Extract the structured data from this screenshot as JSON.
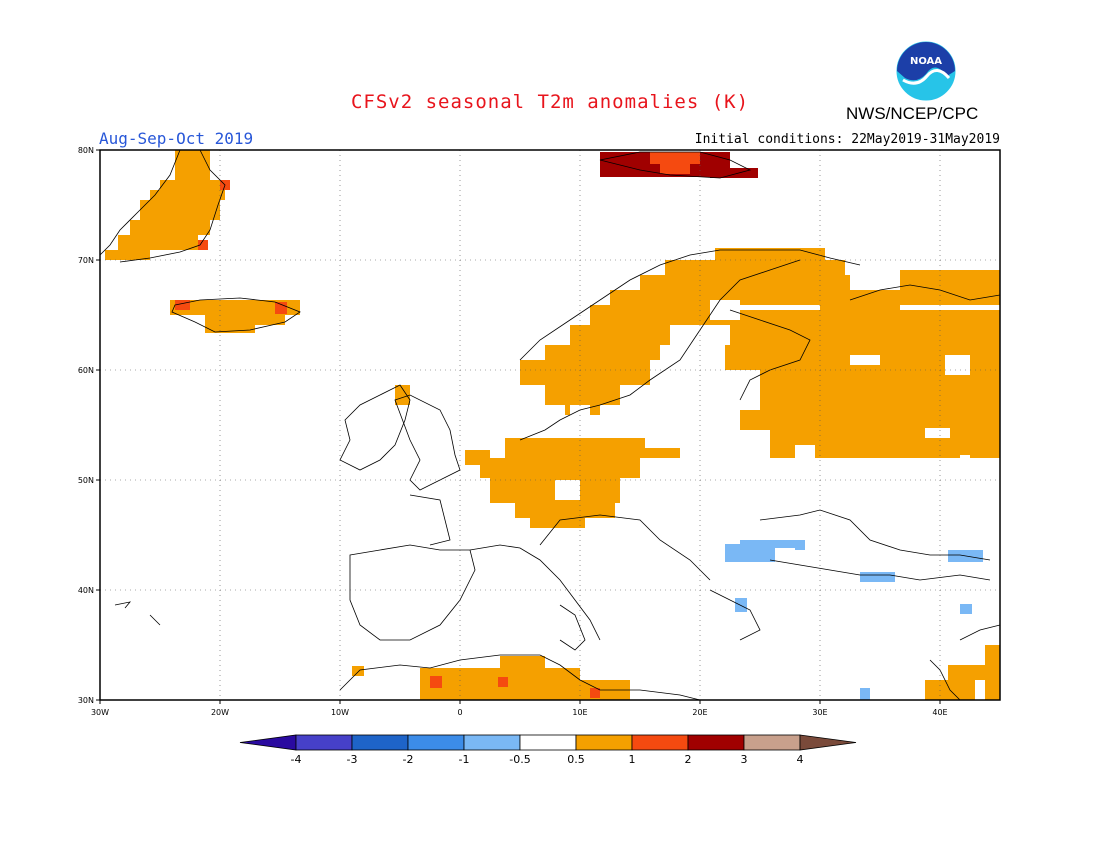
{
  "title": "CFSv2 seasonal T2m anomalies (K)",
  "agency": "NWS/NCEP/CPC",
  "logo_text": "NOAA",
  "period": "Aug-Sep-Oct 2019",
  "initial_conditions": "Initial conditions: 22May2019-31May2019",
  "colors": {
    "title": "#e8141c",
    "period": "#2857d8",
    "neutral": "#ffffff",
    "warm_1": "#f5a000",
    "warm_2": "#f54a10",
    "warm_3": "#a00000",
    "warm_4": "#c8a08c",
    "warm_5": "#7a4a3a",
    "cool_1": "#7ab8f5",
    "cool_2": "#3c8ce8",
    "cool_3": "#1e64c8",
    "cool_4": "#4640c8",
    "cool_5": "#2a0aa0"
  },
  "axes": {
    "lon_labels": [
      "30W",
      "20W",
      "10W",
      "0",
      "10E",
      "20E",
      "30E",
      "40E"
    ],
    "lat_labels": [
      "30N",
      "40N",
      "50N",
      "60N",
      "70N",
      "80N"
    ]
  },
  "colorbar": {
    "labels": [
      "-4",
      "-3",
      "-2",
      "-1",
      "-0.5",
      "0.5",
      "1",
      "2",
      "3",
      "4"
    ]
  }
}
